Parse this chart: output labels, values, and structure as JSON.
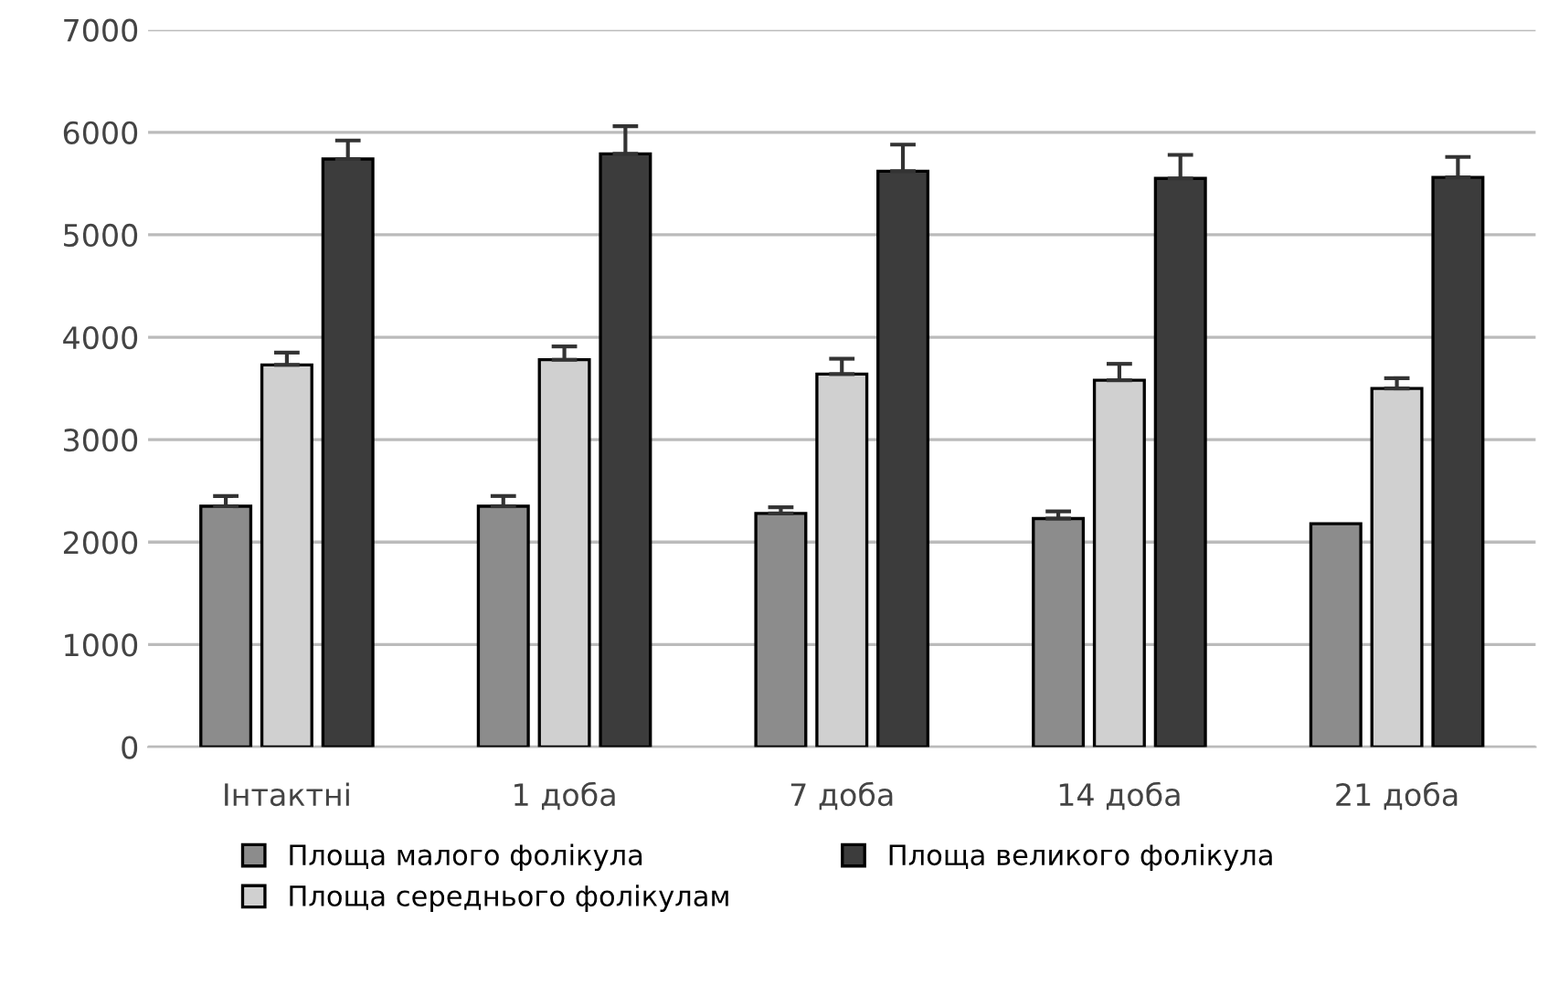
{
  "chart_data": {
    "type": "bar",
    "categories": [
      "Інтактні",
      "1 доба",
      "7 доба",
      "14 доба",
      "21 доба"
    ],
    "series": [
      {
        "name": "Площа малого фолікула",
        "color": "#8c8c8c",
        "values": [
          2350,
          2350,
          2280,
          2230,
          2180
        ],
        "errors": [
          [
            2350,
            2450
          ],
          [
            2350,
            2450
          ],
          [
            2280,
            2340
          ],
          [
            2230,
            2300
          ],
          null
        ]
      },
      {
        "name": "Площа середнього фолікулам",
        "color": "#d0d0d0",
        "values": [
          3730,
          3780,
          3640,
          3580,
          3500
        ],
        "errors": [
          [
            3730,
            3850
          ],
          [
            3780,
            3910
          ],
          [
            3640,
            3790
          ],
          [
            3580,
            3740
          ],
          [
            3500,
            3600
          ]
        ]
      },
      {
        "name": "Площа великого фолікула",
        "color": "#3c3c3c",
        "values": [
          5740,
          5790,
          5620,
          5550,
          5560
        ],
        "errors": [
          [
            5740,
            5920
          ],
          [
            5790,
            6060
          ],
          [
            5620,
            5880
          ],
          [
            5550,
            5780
          ],
          [
            5560,
            5760
          ]
        ]
      }
    ],
    "ylim": [
      0,
      7000
    ],
    "yticks": [
      0,
      1000,
      2000,
      3000,
      4000,
      5000,
      6000,
      7000
    ],
    "grid": "y",
    "legend": "bottom"
  }
}
